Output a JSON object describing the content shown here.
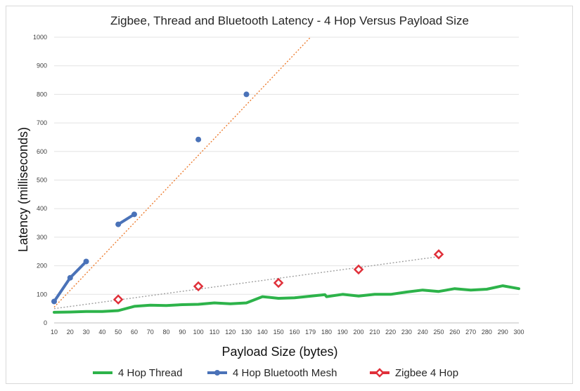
{
  "chart_data": {
    "type": "line",
    "title": "Zigbee, Thread and Bluetooth Latency - 4 Hop Versus Payload Size",
    "xlabel": "Payload Size (bytes)",
    "ylabel": "Latency (milliseconds)",
    "x_ticks": [
      10,
      20,
      30,
      40,
      50,
      60,
      70,
      80,
      90,
      100,
      110,
      120,
      130,
      140,
      150,
      160,
      179,
      180,
      190,
      200,
      210,
      220,
      230,
      240,
      250,
      260,
      270,
      280,
      290,
      300
    ],
    "y_ticks": [
      0,
      100,
      200,
      300,
      400,
      500,
      600,
      700,
      800,
      900,
      1000
    ],
    "ylim": [
      0,
      1000
    ],
    "grid": "horizontal",
    "legend_position": "bottom",
    "series": [
      {
        "name": "4 Hop Thread",
        "color": "#2db34a",
        "marker": "none",
        "points": [
          [
            10,
            37
          ],
          [
            20,
            38
          ],
          [
            30,
            40
          ],
          [
            40,
            40
          ],
          [
            50,
            43
          ],
          [
            60,
            58
          ],
          [
            70,
            62
          ],
          [
            80,
            61
          ],
          [
            90,
            64
          ],
          [
            100,
            65
          ],
          [
            110,
            70
          ],
          [
            120,
            67
          ],
          [
            130,
            70
          ],
          [
            140,
            92
          ],
          [
            150,
            86
          ],
          [
            160,
            88
          ],
          [
            179,
            99
          ],
          [
            180,
            92
          ],
          [
            190,
            100
          ],
          [
            200,
            94
          ],
          [
            210,
            100
          ],
          [
            220,
            100
          ],
          [
            230,
            108
          ],
          [
            240,
            115
          ],
          [
            250,
            110
          ],
          [
            260,
            120
          ],
          [
            270,
            115
          ],
          [
            280,
            118
          ],
          [
            290,
            130
          ],
          [
            300,
            120
          ]
        ]
      },
      {
        "name": "4 Hop Bluetooth Mesh",
        "color": "#4a72b8",
        "marker": "circle",
        "segments": [
          [
            [
              10,
              75
            ],
            [
              20,
              158
            ],
            [
              30,
              215
            ]
          ],
          [
            [
              50,
              345
            ],
            [
              60,
              380
            ]
          ],
          [
            [
              100,
              642
            ]
          ],
          [
            [
              130,
              800
            ]
          ]
        ]
      },
      {
        "name": "Zigbee 4 Hop",
        "color": "#e0303a",
        "marker": "diamond",
        "points": [
          [
            50,
            82
          ],
          [
            100,
            128
          ],
          [
            150,
            140
          ],
          [
            200,
            187
          ],
          [
            250,
            240
          ]
        ]
      }
    ],
    "trendlines": [
      {
        "series": "4 Hop Bluetooth Mesh",
        "color": "#ed7d31",
        "style": "dotted",
        "from": [
          10,
          55
        ],
        "to": [
          170,
          1000
        ]
      },
      {
        "series": "Zigbee 4 Hop",
        "color": "#a0a0a0",
        "style": "dotted",
        "from": [
          10,
          50
        ],
        "to": [
          250,
          232
        ]
      }
    ]
  }
}
